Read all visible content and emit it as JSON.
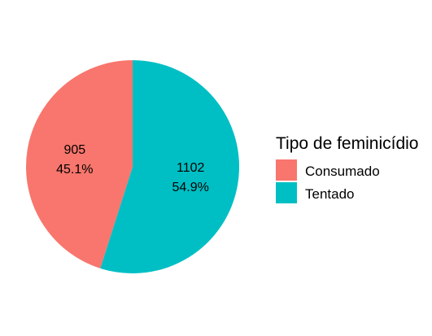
{
  "chart_data": {
    "type": "pie",
    "title": "",
    "slices": [
      {
        "label": "Tentado",
        "value": 1102,
        "percent_label": "54.9%",
        "color": "#00BFC4"
      },
      {
        "label": "Consumado",
        "value": 905,
        "percent_label": "45.1%",
        "color": "#F8766D"
      }
    ],
    "legend": {
      "title": "Tipo de feminicídio",
      "placement": "right",
      "items": [
        {
          "label": "Consumado",
          "color": "#F8766D"
        },
        {
          "label": "Tentado",
          "color": "#00BFC4"
        }
      ]
    }
  }
}
